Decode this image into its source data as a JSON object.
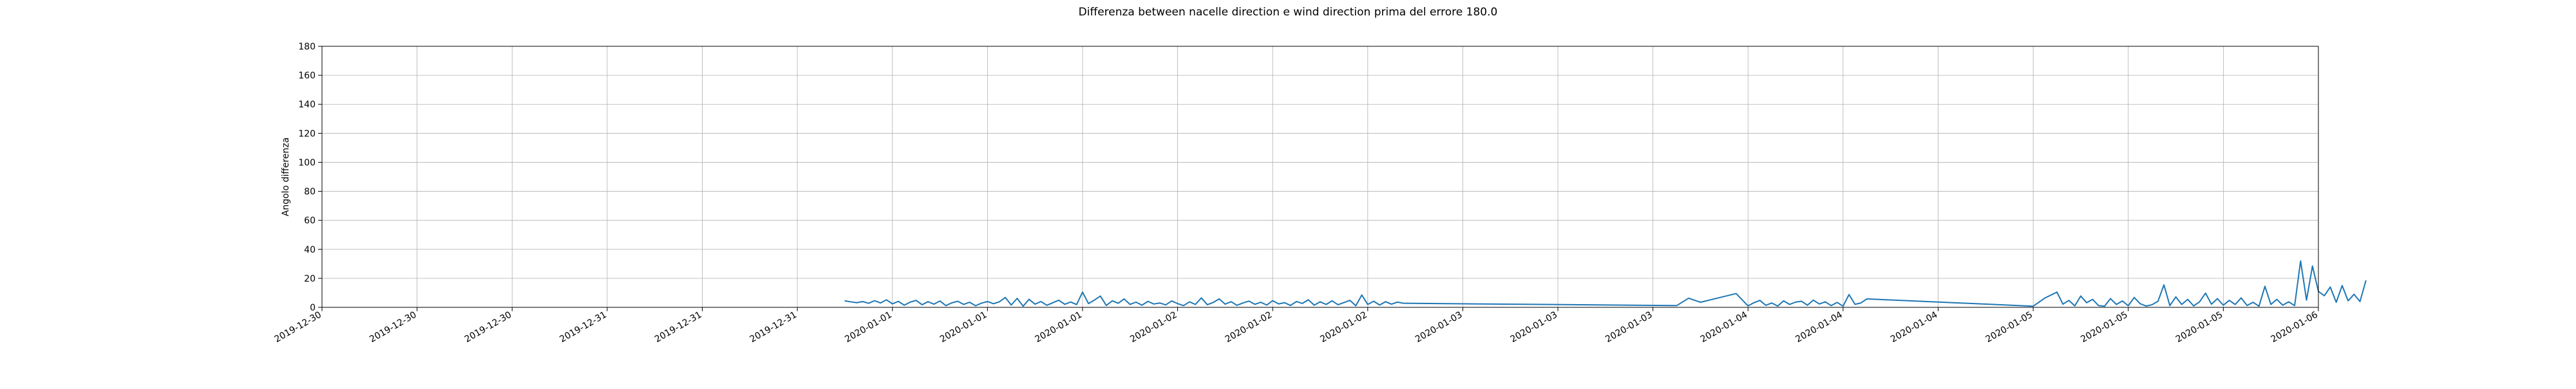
{
  "chart_data": {
    "type": "line",
    "title": "Differenza between nacelle direction e wind direction prima del errore 180.0",
    "xlabel": "",
    "ylabel": "Angolo differenza",
    "ylim": [
      0,
      180
    ],
    "yticks": [
      0,
      20,
      40,
      60,
      80,
      100,
      120,
      140,
      160,
      180
    ],
    "xlim": [
      "2019-12-30 00:00",
      "2020-01-06 00:00"
    ],
    "xticks": [
      {
        "t": "2019-12-30 00:00",
        "label": "2019-12-30"
      },
      {
        "t": "2019-12-30 08:00",
        "label": "2019-12-30"
      },
      {
        "t": "2019-12-30 16:00",
        "label": "2019-12-30"
      },
      {
        "t": "2019-12-31 00:00",
        "label": "2019-12-31"
      },
      {
        "t": "2019-12-31 08:00",
        "label": "2019-12-31"
      },
      {
        "t": "2019-12-31 16:00",
        "label": "2019-12-31"
      },
      {
        "t": "2020-01-01 00:00",
        "label": "2020-01-01"
      },
      {
        "t": "2020-01-01 08:00",
        "label": "2020-01-01"
      },
      {
        "t": "2020-01-01 16:00",
        "label": "2020-01-01"
      },
      {
        "t": "2020-01-02 00:00",
        "label": "2020-01-02"
      },
      {
        "t": "2020-01-02 08:00",
        "label": "2020-01-02"
      },
      {
        "t": "2020-01-02 16:00",
        "label": "2020-01-02"
      },
      {
        "t": "2020-01-03 00:00",
        "label": "2020-01-03"
      },
      {
        "t": "2020-01-03 08:00",
        "label": "2020-01-03"
      },
      {
        "t": "2020-01-03 16:00",
        "label": "2020-01-03"
      },
      {
        "t": "2020-01-04 00:00",
        "label": "2020-01-04"
      },
      {
        "t": "2020-01-04 08:00",
        "label": "2020-01-04"
      },
      {
        "t": "2020-01-04 16:00",
        "label": "2020-01-04"
      },
      {
        "t": "2020-01-05 00:00",
        "label": "2020-01-05"
      },
      {
        "t": "2020-01-05 08:00",
        "label": "2020-01-05"
      },
      {
        "t": "2020-01-05 16:00",
        "label": "2020-01-05"
      },
      {
        "t": "2020-01-06 00:00",
        "label": "2020-01-06"
      }
    ],
    "grid": true,
    "series": [
      {
        "color": "#1f77b4",
        "points": [
          [
            "2019-12-31 20:00",
            4.5
          ],
          [
            "2019-12-31 20:30",
            3.8
          ],
          [
            "2019-12-31 21:00",
            3.2
          ],
          [
            "2019-12-31 21:30",
            4.0
          ],
          [
            "2019-12-31 22:00",
            2.8
          ],
          [
            "2019-12-31 22:30",
            4.6
          ],
          [
            "2019-12-31 23:00",
            3.0
          ],
          [
            "2019-12-31 23:30",
            5.2
          ],
          [
            "2020-01-01 00:00",
            2.4
          ],
          [
            "2020-01-01 00:30",
            4.1
          ],
          [
            "2020-01-01 01:00",
            1.5
          ],
          [
            "2020-01-01 01:30",
            3.6
          ],
          [
            "2020-01-01 02:00",
            4.8
          ],
          [
            "2020-01-01 02:30",
            1.8
          ],
          [
            "2020-01-01 03:00",
            3.9
          ],
          [
            "2020-01-01 03:30",
            2.2
          ],
          [
            "2020-01-01 04:00",
            4.4
          ],
          [
            "2020-01-01 04:30",
            1.2
          ],
          [
            "2020-01-01 05:00",
            3.1
          ],
          [
            "2020-01-01 05:30",
            4.2
          ],
          [
            "2020-01-01 06:00",
            2.0
          ],
          [
            "2020-01-01 06:30",
            3.5
          ],
          [
            "2020-01-01 07:00",
            1.1
          ],
          [
            "2020-01-01 07:30",
            2.9
          ],
          [
            "2020-01-01 08:00",
            4.0
          ],
          [
            "2020-01-01 08:30",
            2.5
          ],
          [
            "2020-01-01 09:00",
            3.8
          ],
          [
            "2020-01-01 09:30",
            6.8
          ],
          [
            "2020-01-01 10:00",
            1.6
          ],
          [
            "2020-01-01 10:30",
            6.2
          ],
          [
            "2020-01-01 11:00",
            0.8
          ],
          [
            "2020-01-01 11:30",
            5.5
          ],
          [
            "2020-01-01 12:00",
            2.2
          ],
          [
            "2020-01-01 12:30",
            4.0
          ],
          [
            "2020-01-01 13:00",
            1.4
          ],
          [
            "2020-01-01 13:30",
            3.2
          ],
          [
            "2020-01-01 14:00",
            4.9
          ],
          [
            "2020-01-01 14:30",
            2.1
          ],
          [
            "2020-01-01 15:00",
            3.7
          ],
          [
            "2020-01-01 15:30",
            1.9
          ],
          [
            "2020-01-01 16:00",
            10.5
          ],
          [
            "2020-01-01 16:30",
            2.6
          ],
          [
            "2020-01-01 17:00",
            5.0
          ],
          [
            "2020-01-01 17:30",
            7.8
          ],
          [
            "2020-01-01 18:00",
            1.3
          ],
          [
            "2020-01-01 18:30",
            4.5
          ],
          [
            "2020-01-01 19:00",
            2.8
          ],
          [
            "2020-01-01 19:30",
            5.8
          ],
          [
            "2020-01-01 20:00",
            2.0
          ],
          [
            "2020-01-01 20:30",
            3.6
          ],
          [
            "2020-01-01 21:00",
            1.5
          ],
          [
            "2020-01-01 21:30",
            4.1
          ],
          [
            "2020-01-01 22:00",
            2.3
          ],
          [
            "2020-01-01 22:30",
            3.0
          ],
          [
            "2020-01-01 23:00",
            1.7
          ],
          [
            "2020-01-01 23:30",
            4.4
          ],
          [
            "2020-01-02 00:00",
            2.6
          ],
          [
            "2020-01-02 00:30",
            1.2
          ],
          [
            "2020-01-02 01:00",
            3.8
          ],
          [
            "2020-01-02 01:30",
            2.0
          ],
          [
            "2020-01-02 02:00",
            6.5
          ],
          [
            "2020-01-02 02:30",
            1.8
          ],
          [
            "2020-01-02 03:00",
            3.4
          ],
          [
            "2020-01-02 03:30",
            5.8
          ],
          [
            "2020-01-02 04:00",
            2.2
          ],
          [
            "2020-01-02 04:30",
            3.9
          ],
          [
            "2020-01-02 05:00",
            1.4
          ],
          [
            "2020-01-02 05:30",
            3.0
          ],
          [
            "2020-01-02 06:00",
            4.3
          ],
          [
            "2020-01-02 06:30",
            2.1
          ],
          [
            "2020-01-02 07:00",
            3.5
          ],
          [
            "2020-01-02 07:30",
            1.6
          ],
          [
            "2020-01-02 08:00",
            4.6
          ],
          [
            "2020-01-02 08:30",
            2.4
          ],
          [
            "2020-01-02 09:00",
            3.2
          ],
          [
            "2020-01-02 09:30",
            1.3
          ],
          [
            "2020-01-02 10:00",
            4.0
          ],
          [
            "2020-01-02 10:30",
            2.7
          ],
          [
            "2020-01-02 11:00",
            5.2
          ],
          [
            "2020-01-02 11:30",
            1.5
          ],
          [
            "2020-01-02 12:00",
            3.8
          ],
          [
            "2020-01-02 12:30",
            2.0
          ],
          [
            "2020-01-02 13:00",
            4.5
          ],
          [
            "2020-01-02 13:30",
            1.8
          ],
          [
            "2020-01-02 14:00",
            3.3
          ],
          [
            "2020-01-02 14:30",
            4.8
          ],
          [
            "2020-01-02 15:00",
            1.1
          ],
          [
            "2020-01-02 15:30",
            8.5
          ],
          [
            "2020-01-02 16:00",
            2.0
          ],
          [
            "2020-01-02 16:30",
            4.2
          ],
          [
            "2020-01-02 17:00",
            1.6
          ],
          [
            "2020-01-02 17:30",
            3.9
          ],
          [
            "2020-01-02 18:00",
            2.2
          ],
          [
            "2020-01-02 18:30",
            3.6
          ],
          [
            "2020-01-02 19:00",
            2.8
          ],
          [
            "2020-01-03 18:00",
            1.2
          ],
          [
            "2020-01-03 19:00",
            6.3
          ],
          [
            "2020-01-03 20:00",
            3.5
          ],
          [
            "2020-01-03 23:00",
            9.5
          ],
          [
            "2020-01-04 00:00",
            1.0
          ],
          [
            "2020-01-04 00:30",
            3.2
          ],
          [
            "2020-01-04 01:00",
            4.8
          ],
          [
            "2020-01-04 01:30",
            1.4
          ],
          [
            "2020-01-04 02:00",
            3.0
          ],
          [
            "2020-01-04 02:30",
            0.9
          ],
          [
            "2020-01-04 03:00",
            4.5
          ],
          [
            "2020-01-04 03:30",
            2.0
          ],
          [
            "2020-01-04 04:00",
            3.6
          ],
          [
            "2020-01-04 04:30",
            4.2
          ],
          [
            "2020-01-04 05:00",
            1.5
          ],
          [
            "2020-01-04 05:30",
            5.0
          ],
          [
            "2020-01-04 06:00",
            2.3
          ],
          [
            "2020-01-04 06:30",
            3.8
          ],
          [
            "2020-01-04 07:00",
            1.2
          ],
          [
            "2020-01-04 07:30",
            3.4
          ],
          [
            "2020-01-04 08:00",
            0.8
          ],
          [
            "2020-01-04 08:30",
            8.8
          ],
          [
            "2020-01-04 09:00",
            2.1
          ],
          [
            "2020-01-04 09:30",
            3.0
          ],
          [
            "2020-01-04 10:00",
            5.8
          ],
          [
            "2020-01-05 00:00",
            0.8
          ],
          [
            "2020-01-05 01:00",
            6.5
          ],
          [
            "2020-01-05 02:00",
            10.5
          ],
          [
            "2020-01-05 02:30",
            2.2
          ],
          [
            "2020-01-05 03:00",
            4.8
          ],
          [
            "2020-01-05 03:30",
            1.0
          ],
          [
            "2020-01-05 04:00",
            7.8
          ],
          [
            "2020-01-05 04:30",
            3.2
          ],
          [
            "2020-01-05 05:00",
            5.5
          ],
          [
            "2020-01-05 05:30",
            1.2
          ],
          [
            "2020-01-05 06:00",
            0.8
          ],
          [
            "2020-01-05 06:30",
            6.0
          ],
          [
            "2020-01-05 07:00",
            2.0
          ],
          [
            "2020-01-05 07:30",
            4.4
          ],
          [
            "2020-01-05 08:00",
            1.1
          ],
          [
            "2020-01-05 08:30",
            6.8
          ],
          [
            "2020-01-05 09:00",
            2.5
          ],
          [
            "2020-01-05 09:30",
            0.9
          ],
          [
            "2020-01-05 10:00",
            1.8
          ],
          [
            "2020-01-05 10:30",
            4.2
          ],
          [
            "2020-01-05 11:00",
            15.5
          ],
          [
            "2020-01-05 11:30",
            1.2
          ],
          [
            "2020-01-05 12:00",
            7.2
          ],
          [
            "2020-01-05 12:30",
            2.0
          ],
          [
            "2020-01-05 13:00",
            5.5
          ],
          [
            "2020-01-05 13:30",
            1.0
          ],
          [
            "2020-01-05 14:00",
            3.8
          ],
          [
            "2020-01-05 14:30",
            9.8
          ],
          [
            "2020-01-05 15:00",
            2.2
          ],
          [
            "2020-01-05 15:30",
            6.0
          ],
          [
            "2020-01-05 16:00",
            1.5
          ],
          [
            "2020-01-05 16:30",
            4.8
          ],
          [
            "2020-01-05 17:00",
            2.0
          ],
          [
            "2020-01-05 17:30",
            6.5
          ],
          [
            "2020-01-05 18:00",
            1.3
          ],
          [
            "2020-01-05 18:30",
            3.5
          ],
          [
            "2020-01-05 19:00",
            0.8
          ],
          [
            "2020-01-05 19:30",
            14.5
          ],
          [
            "2020-01-05 20:00",
            2.0
          ],
          [
            "2020-01-05 20:30",
            5.5
          ],
          [
            "2020-01-05 21:00",
            1.5
          ],
          [
            "2020-01-05 21:30",
            3.8
          ],
          [
            "2020-01-05 22:00",
            1.2
          ],
          [
            "2020-01-05 22:30",
            32.0
          ],
          [
            "2020-01-05 23:00",
            5.0
          ],
          [
            "2020-01-05 23:30",
            28.5
          ],
          [
            "2020-01-06 00:00",
            11.0
          ],
          [
            "2020-01-06 00:30",
            8.0
          ],
          [
            "2020-01-06 01:00",
            14.0
          ],
          [
            "2020-01-06 01:30",
            3.5
          ],
          [
            "2020-01-06 02:00",
            15.0
          ],
          [
            "2020-01-06 02:30",
            4.5
          ],
          [
            "2020-01-06 03:00",
            9.0
          ],
          [
            "2020-01-06 03:30",
            4.0
          ],
          [
            "2020-01-06 04:00",
            18.5
          ]
        ]
      }
    ]
  }
}
